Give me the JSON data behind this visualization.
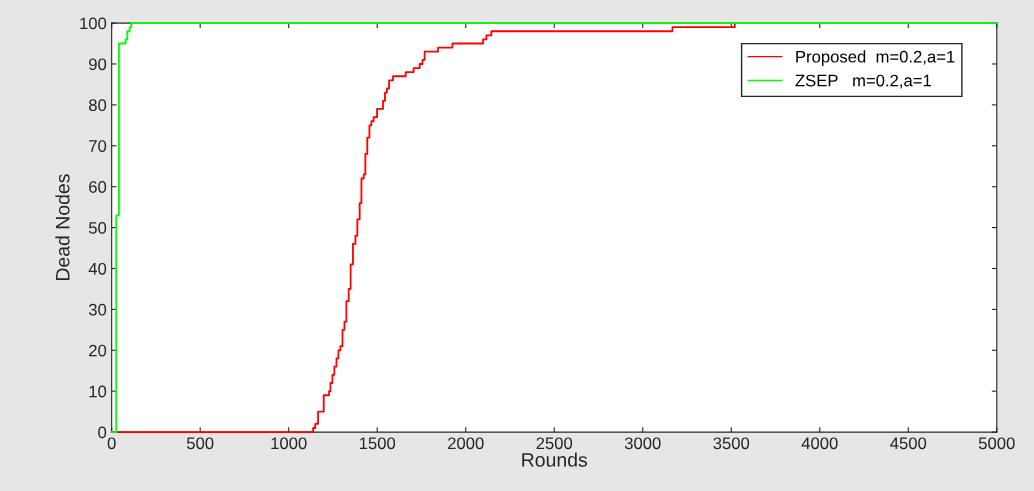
{
  "chart_data": {
    "type": "step",
    "xlabel": "Rounds",
    "ylabel": "Dead Nodes",
    "xlim": [
      0,
      5000
    ],
    "ylim": [
      0,
      100
    ],
    "xticks": [
      0,
      500,
      1000,
      1500,
      2000,
      2500,
      3000,
      3500,
      4000,
      4500,
      5000
    ],
    "yticks": [
      0,
      10,
      20,
      30,
      40,
      50,
      60,
      70,
      80,
      90,
      100
    ],
    "grid": false,
    "legend": "top right",
    "marker": "none",
    "line_style": "solid",
    "series": [
      {
        "name": "Proposed  m=0.2,a=1",
        "color": "#ff0000",
        "x": [
          0,
          1138,
          1150,
          1166,
          1198,
          1228,
          1236,
          1247,
          1258,
          1270,
          1281,
          1292,
          1304,
          1315,
          1326,
          1339,
          1350,
          1363,
          1377,
          1388,
          1401,
          1411,
          1424,
          1433,
          1444,
          1456,
          1467,
          1480,
          1499,
          1533,
          1544,
          1555,
          1567,
          1589,
          1661,
          1706,
          1740,
          1756,
          1768,
          1844,
          1925,
          2098,
          2117,
          2145,
          3168,
          3520
        ],
        "values": [
          0,
          1,
          2,
          5,
          9,
          10,
          12,
          14,
          16,
          18,
          20,
          21,
          25,
          27,
          32,
          35,
          41,
          46,
          48,
          52,
          56,
          62,
          63,
          68,
          72,
          75,
          76,
          77,
          79,
          81,
          83,
          84,
          86,
          87,
          88,
          89,
          90,
          91,
          93,
          94,
          95,
          96,
          97,
          98,
          99,
          100
        ]
      },
      {
        "name": "ZSEP   m=0.2,a=1",
        "color": "#00ff00",
        "x": [
          0,
          26,
          41,
          79,
          88,
          102,
          111,
          5000
        ],
        "values": [
          0,
          53,
          95,
          96,
          98,
          99,
          100,
          100
        ]
      }
    ]
  }
}
